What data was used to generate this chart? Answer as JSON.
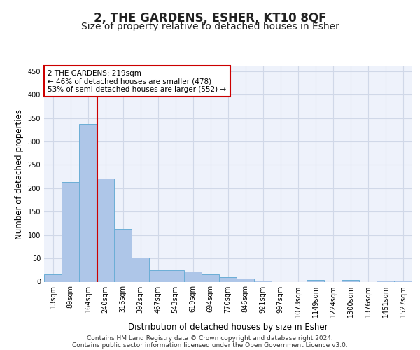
{
  "title": "2, THE GARDENS, ESHER, KT10 8QF",
  "subtitle": "Size of property relative to detached houses in Esher",
  "xlabel": "Distribution of detached houses by size in Esher",
  "ylabel": "Number of detached properties",
  "categories": [
    "13sqm",
    "89sqm",
    "164sqm",
    "240sqm",
    "316sqm",
    "392sqm",
    "467sqm",
    "543sqm",
    "619sqm",
    "694sqm",
    "770sqm",
    "846sqm",
    "921sqm",
    "997sqm",
    "1073sqm",
    "1149sqm",
    "1224sqm",
    "1300sqm",
    "1376sqm",
    "1451sqm",
    "1527sqm"
  ],
  "values": [
    15,
    213,
    338,
    220,
    113,
    52,
    25,
    24,
    22,
    16,
    9,
    6,
    2,
    0,
    0,
    3,
    0,
    3,
    0,
    2,
    2
  ],
  "bar_color": "#aec6e8",
  "bar_edge_color": "#6baed6",
  "red_line_x": 2.53,
  "annotation_text": "2 THE GARDENS: 219sqm\n← 46% of detached houses are smaller (478)\n53% of semi-detached houses are larger (552) →",
  "annotation_box_color": "#ffffff",
  "annotation_box_edge": "#cc0000",
  "ylim": [
    0,
    460
  ],
  "yticks": [
    0,
    50,
    100,
    150,
    200,
    250,
    300,
    350,
    400,
    450
  ],
  "footer_line1": "Contains HM Land Registry data © Crown copyright and database right 2024.",
  "footer_line2": "Contains public sector information licensed under the Open Government Licence v3.0.",
  "title_fontsize": 12,
  "subtitle_fontsize": 10,
  "tick_fontsize": 7,
  "label_fontsize": 8.5,
  "annot_fontsize": 7.5,
  "grid_color": "#d0d8e8",
  "background_color": "#eef2fb"
}
